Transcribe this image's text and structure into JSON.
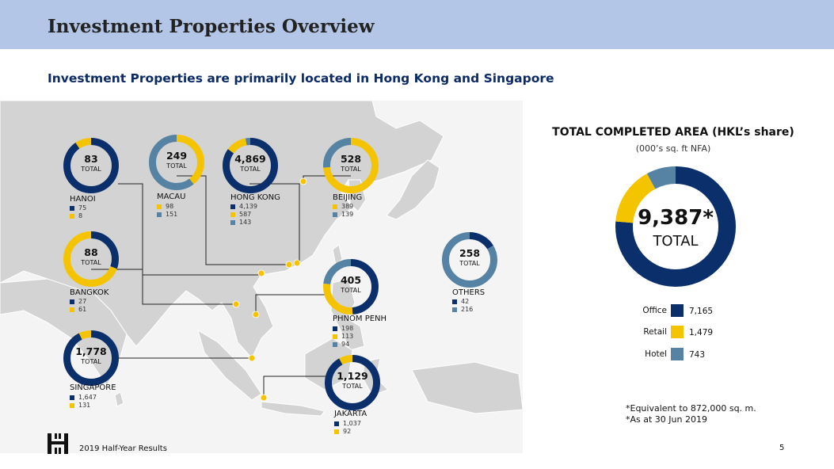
{
  "header": {
    "title": "Investment Properties Overview"
  },
  "subtitle": "Investment Properties are primarily located in Hong Kong and Singapore",
  "colors": {
    "office": "#0b2f6b",
    "retail": "#f5c400",
    "hotel": "#5682a3",
    "header_bg": "#b4c6e7"
  },
  "locations": {
    "hanoi": {
      "name": "HANOI",
      "total": "83",
      "total_label": "TOTAL",
      "rows": [
        {
          "color": "office",
          "value": "75"
        },
        {
          "color": "retail",
          "value": "8"
        }
      ],
      "segments": [
        75,
        8,
        0
      ]
    },
    "macau": {
      "name": "MACAU",
      "total": "249",
      "total_label": "TOTAL",
      "rows": [
        {
          "color": "retail",
          "value": "98"
        },
        {
          "color": "hotel",
          "value": "151"
        }
      ],
      "segments": [
        0,
        98,
        151
      ]
    },
    "hongkong": {
      "name": "HONG KONG",
      "total": "4,869",
      "total_label": "TOTAL",
      "rows": [
        {
          "color": "office",
          "value": "4,139"
        },
        {
          "color": "retail",
          "value": "587"
        },
        {
          "color": "hotel",
          "value": "143"
        }
      ],
      "segments": [
        4139,
        587,
        143
      ]
    },
    "beijing": {
      "name": "BEIJING",
      "total": "528",
      "total_label": "TOTAL",
      "rows": [
        {
          "color": "retail",
          "value": "389"
        },
        {
          "color": "hotel",
          "value": "139"
        }
      ],
      "segments": [
        0,
        389,
        139
      ]
    },
    "bangkok": {
      "name": "BANGKOK",
      "total": "88",
      "total_label": "TOTAL",
      "rows": [
        {
          "color": "office",
          "value": "27"
        },
        {
          "color": "retail",
          "value": "61"
        }
      ],
      "segments": [
        27,
        61,
        0
      ]
    },
    "phnompenh": {
      "name": "PHNOM PENH",
      "total": "405",
      "total_label": "TOTAL",
      "rows": [
        {
          "color": "office",
          "value": "198"
        },
        {
          "color": "retail",
          "value": "113"
        },
        {
          "color": "hotel",
          "value": "94"
        }
      ],
      "segments": [
        198,
        113,
        94
      ]
    },
    "others": {
      "name": "OTHERS",
      "total": "258",
      "total_label": "TOTAL",
      "rows": [
        {
          "color": "office",
          "value": "42"
        },
        {
          "color": "hotel",
          "value": "216"
        }
      ],
      "segments": [
        42,
        0,
        216
      ]
    },
    "singapore": {
      "name": "SINGAPORE",
      "total": "1,778",
      "total_label": "TOTAL",
      "rows": [
        {
          "color": "office",
          "value": "1,647"
        },
        {
          "color": "retail",
          "value": "131"
        }
      ],
      "segments": [
        1647,
        131,
        0
      ]
    },
    "jakarta": {
      "name": "JAKARTA",
      "total": "1,129",
      "total_label": "TOTAL",
      "rows": [
        {
          "color": "office",
          "value": "1,037"
        },
        {
          "color": "retail",
          "value": "92"
        }
      ],
      "segments": [
        1037,
        92,
        0
      ]
    }
  },
  "summary": {
    "title": "TOTAL COMPLETED AREA (HKL’s share)",
    "subtitle": "(000’s sq. ft NFA)",
    "total": "9,387*",
    "total_label": "TOTAL",
    "segments": [
      7165,
      1479,
      743
    ],
    "legend": [
      {
        "label": "Office",
        "color": "office",
        "value": "7,165"
      },
      {
        "label": "Retail",
        "color": "retail",
        "value": "1,479"
      },
      {
        "label": "Hotel",
        "color": "hotel",
        "value": "743"
      }
    ],
    "footnotes": [
      "*Equivalent to 872,000 sq. m.",
      "*As at 30 Jun 2019"
    ]
  },
  "footer": {
    "text": "2019 Half-Year Results",
    "page": "5",
    "logo_icon": "hongkong-land-logo-icon"
  }
}
